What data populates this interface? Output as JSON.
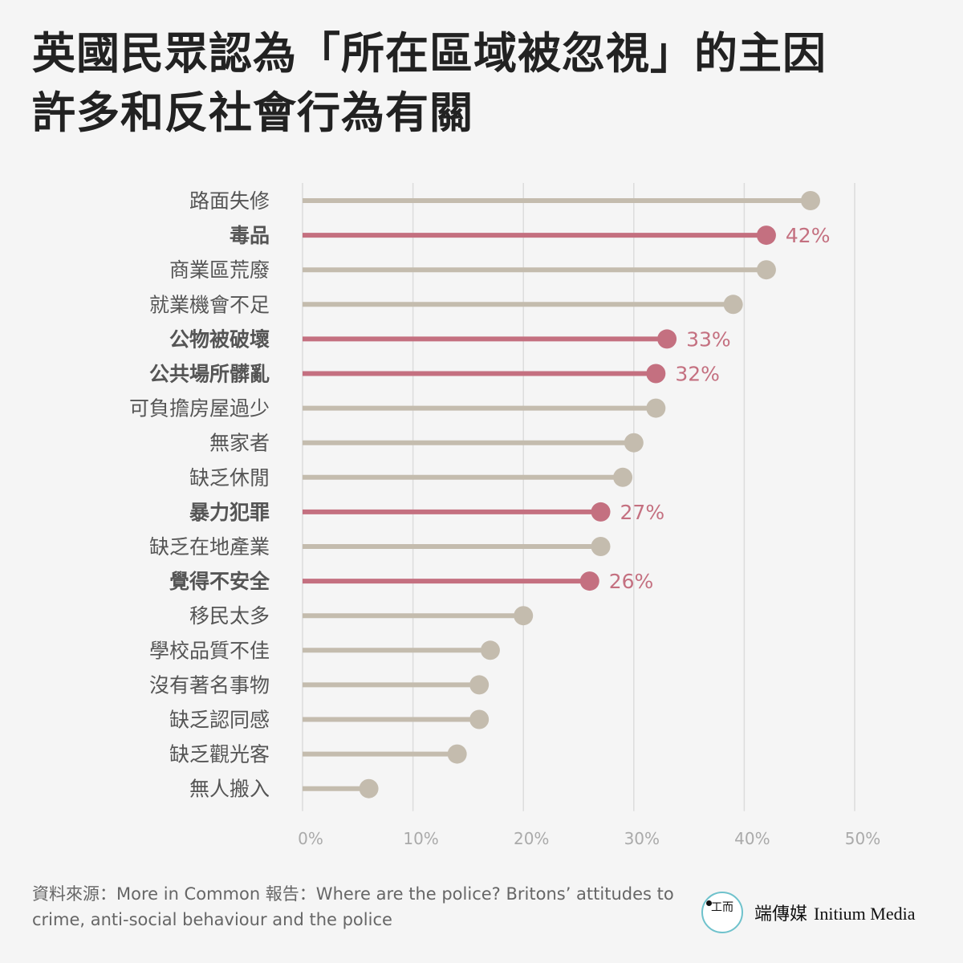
{
  "title_lines": [
    "英國民眾認為「所在區域被忽視」的主因",
    "許多和反社會行為有關"
  ],
  "source": "資料來源：More in Common 報告：Where are the police? Britons’ attitudes to crime, anti-social behaviour and the police",
  "brand": {
    "logo_icon": "initium-logo-icon",
    "name_zh": "端傳媒",
    "name_en": "Initium Media"
  },
  "colors": {
    "highlight": "#c47080",
    "normal": "#c4bcae",
    "grid": "#dcdcdc",
    "tick": "#aaaaaa",
    "label": "#555555"
  },
  "chart_data": {
    "type": "lollipop",
    "xlim": [
      0,
      50
    ],
    "xticks": [
      "0%",
      "10%",
      "20%",
      "30%",
      "40%",
      "50%"
    ],
    "grid": true,
    "categories": [
      "路面失修",
      "毒品",
      "商業區荒廢",
      "就業機會不足",
      "公物被破壞",
      "公共場所髒亂",
      "可負擔房屋過少",
      "無家者",
      "缺乏休閒",
      "暴力犯罪",
      "缺乏在地產業",
      "覺得不安全",
      "移民太多",
      "學校品質不佳",
      "沒有著名事物",
      "缺乏認同感",
      "缺乏觀光客",
      "無人搬入"
    ],
    "values": [
      46,
      42,
      42,
      39,
      33,
      32,
      32,
      30,
      29,
      27,
      27,
      26,
      20,
      17,
      16,
      16,
      14,
      6
    ],
    "highlighted": [
      false,
      true,
      false,
      false,
      true,
      true,
      false,
      false,
      false,
      true,
      false,
      true,
      false,
      false,
      false,
      false,
      false,
      false
    ],
    "value_labels": [
      "",
      "42%",
      "",
      "",
      "33%",
      "32%",
      "",
      "",
      "",
      "27%",
      "",
      "26%",
      "",
      "",
      "",
      "",
      "",
      ""
    ]
  }
}
